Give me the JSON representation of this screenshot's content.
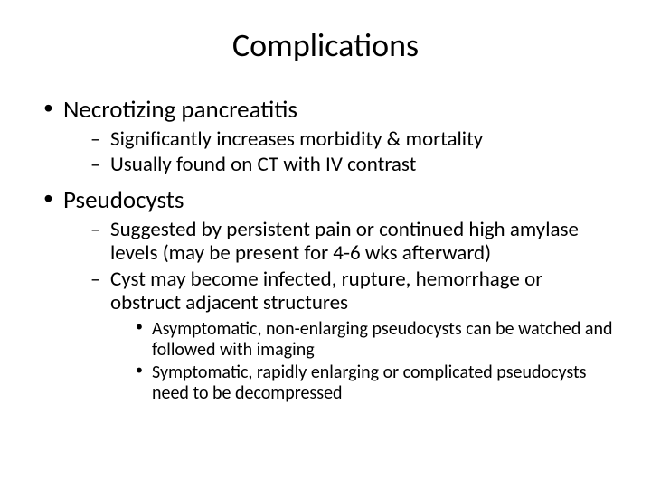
{
  "slide": {
    "title": "Complications",
    "background_color": "#ffffff",
    "text_color": "#000000",
    "font_family": "Calibri",
    "title_fontsize": 36,
    "lvl1_fontsize": 27,
    "lvl2_fontsize": 23,
    "lvl3_fontsize": 20,
    "bullets": [
      {
        "text": "Necrotizing pancreatitis",
        "sub": [
          {
            "text": "Significantly increases morbidity & mortality"
          },
          {
            "text": "Usually found on CT with IV contrast"
          }
        ]
      },
      {
        "text": "Pseudocysts",
        "sub": [
          {
            "text": "Suggested by persistent pain or continued high amylase levels (may be present for 4-6 wks afterward)"
          },
          {
            "text": "Cyst may become infected, rupture, hemorrhage or obstruct adjacent structures",
            "sub": [
              {
                "text": "Asymptomatic, non-enlarging pseudocysts can be watched and followed with imaging"
              },
              {
                "text": "Symptomatic, rapidly enlarging or complicated pseudocysts need to be decompressed"
              }
            ]
          }
        ]
      }
    ]
  }
}
